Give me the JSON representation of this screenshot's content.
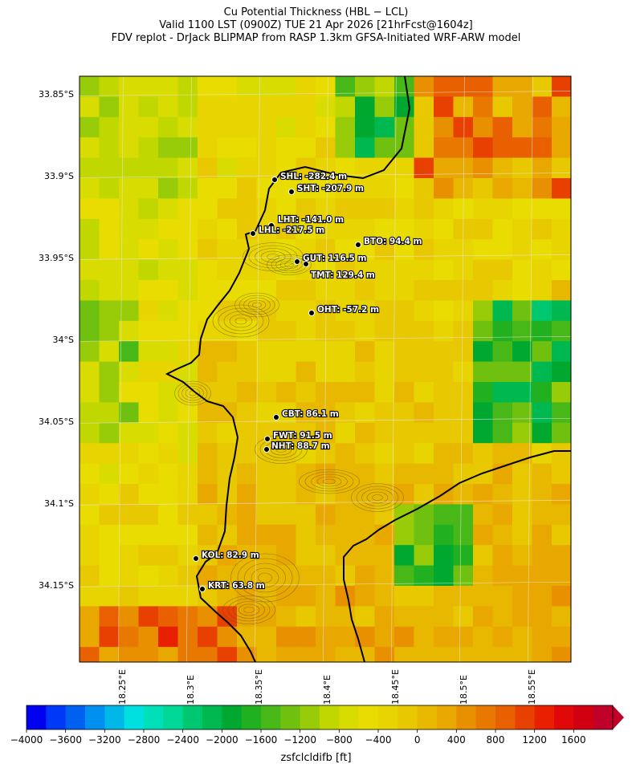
{
  "title": {
    "line1": "Cu Potential Thickness (HBL − LCL)",
    "line2": "Valid 1100 LST (0900Z) TUE 21 Apr 2026 [21hrFcst@1604z]",
    "line3": "FDV replot - DrJack BLIPMAP from RASP 1.3km GFSA-Initiated WRF-ARW model"
  },
  "lat_labels": [
    "33.85°S",
    "33.9°S",
    "33.95°S",
    "34°S",
    "34.05°S",
    "34.1°S",
    "34.15°S"
  ],
  "lon_labels": [
    "18.25°E",
    "18.3°E",
    "18.35°E",
    "18.4°E",
    "18.45°E",
    "18.5°E",
    "18.55°E"
  ],
  "stations": [
    {
      "code": "SHL",
      "label": "SHL: -282.4 m",
      "value": -282.4
    },
    {
      "code": "SHT",
      "label": "SHT: -207.9 m",
      "value": -207.9
    },
    {
      "code": "LHT",
      "label": "LHT: -141.0 m",
      "value": -141.0
    },
    {
      "code": "LHL",
      "label": "LHL: -217.5 m",
      "value": -217.5
    },
    {
      "code": "BTO",
      "label": "BTO: 94.4 m",
      "value": 94.4
    },
    {
      "code": "GUT",
      "label": "GUT: 116.5 m",
      "value": 116.5
    },
    {
      "code": "TMT",
      "label": "TMT: 129.4 m",
      "value": 129.4
    },
    {
      "code": "OHT",
      "label": "OHT: -57.2 m",
      "value": -57.2
    },
    {
      "code": "CBT",
      "label": "CBT: 86.1 m",
      "value": 86.1
    },
    {
      "code": "FWT",
      "label": "FWT: 91.5 m",
      "value": 91.5
    },
    {
      "code": "NHT",
      "label": "NHT: 88.7 m",
      "value": 88.7
    },
    {
      "code": "KOL",
      "label": "KOL: 82.9 m",
      "value": 82.9
    },
    {
      "code": "KRT",
      "label": "KRT: 63.8 m",
      "value": 63.8
    }
  ],
  "colorbar": {
    "ticks": [
      "−4000",
      "−3600",
      "−3200",
      "−2800",
      "−2400",
      "−2000",
      "−1600",
      "−1200",
      "−800",
      "−400",
      "0",
      "400",
      "800",
      "1200",
      "1600"
    ],
    "label": "zsfclcldifb [ft]",
    "colors": [
      "#0000f0",
      "#0038f8",
      "#0060f0",
      "#0090f0",
      "#00b8e8",
      "#00e0e0",
      "#00e0b8",
      "#00d898",
      "#00c870",
      "#00b850",
      "#00a830",
      "#20b020",
      "#48b818",
      "#70c010",
      "#98cc08",
      "#c0d800",
      "#d8dc00",
      "#e8dc00",
      "#e8d400",
      "#e8c800",
      "#e8b800",
      "#e8a800",
      "#e89000",
      "#e87800",
      "#e86000",
      "#e84000",
      "#e82000",
      "#e00808",
      "#d00010",
      "#c00028"
    ]
  }
}
